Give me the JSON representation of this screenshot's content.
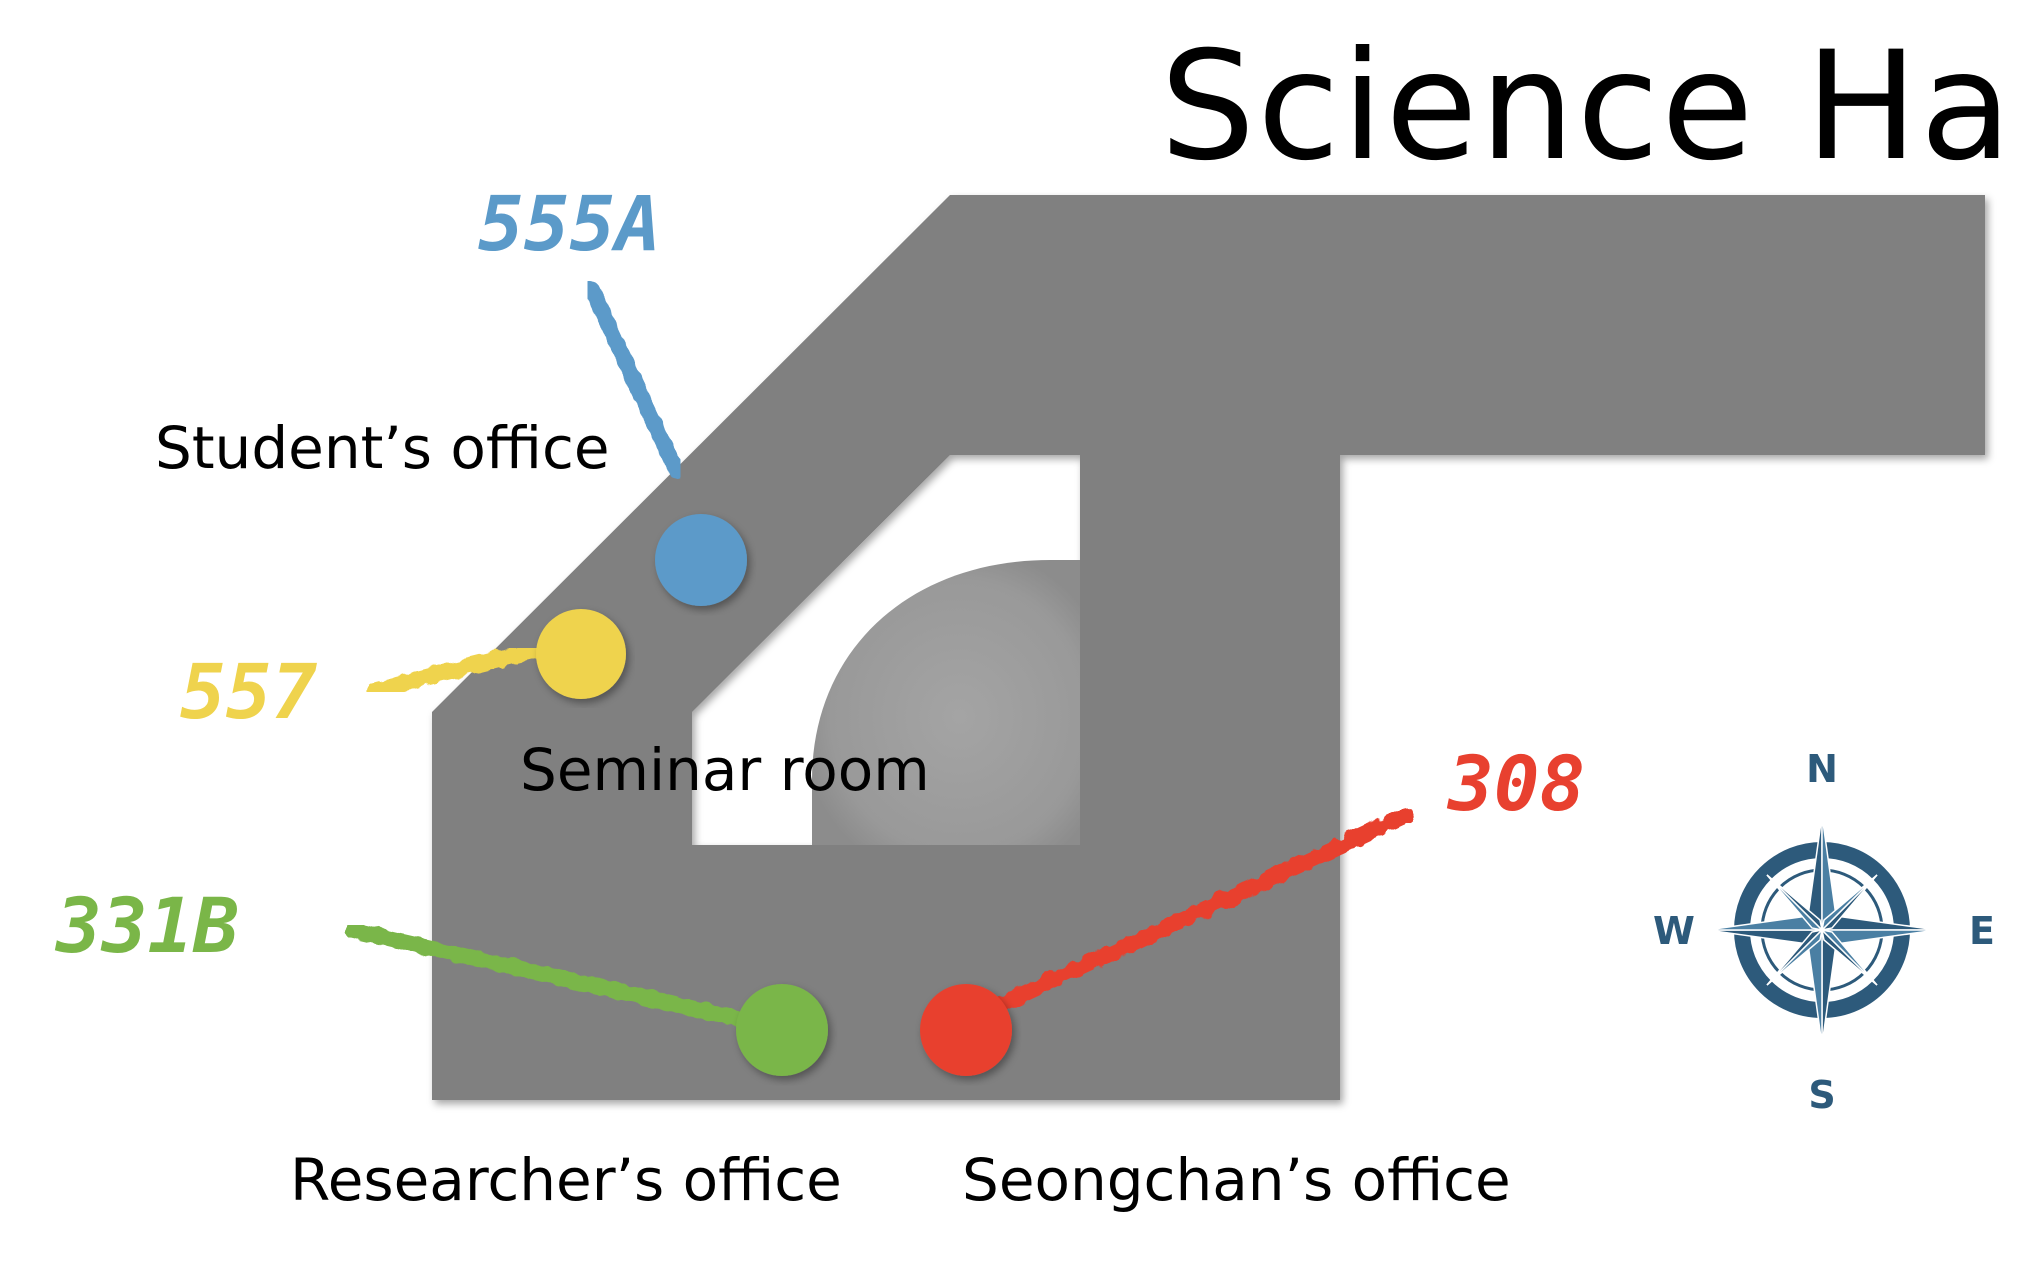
{
  "title": "Science Hall",
  "rooms": [
    {
      "code": "555A",
      "label": "Student’s office",
      "color": "#5b9ac9"
    },
    {
      "code": "557",
      "label": "Seminar room",
      "color": "#efd34d"
    },
    {
      "code": "331B",
      "label": "Researcher’s office",
      "color": "#7ab648"
    },
    {
      "code": "308",
      "label": "Seongchan’s office",
      "color": "#e8402f"
    }
  ],
  "compass": {
    "north": "N",
    "south": "S",
    "east": "E",
    "west": "W",
    "color": "#2d5a7b"
  },
  "colors": {
    "building": "#808080",
    "dome": "#9a9a9a"
  }
}
